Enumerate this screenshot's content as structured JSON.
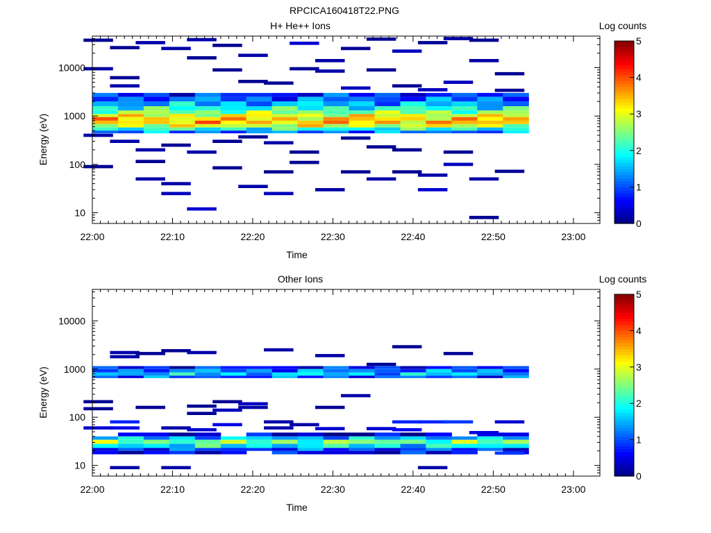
{
  "figure": {
    "title": "RPCICA160418T22.PNG"
  },
  "chart_data": [
    {
      "type": "heatmap",
      "title": "H+ He++ Ions",
      "xlabel": "Time",
      "ylabel": "Energy (eV)",
      "x_ticks": [
        "22:00",
        "22:10",
        "22:20",
        "22:30",
        "22:40",
        "22:50",
        "23:00"
      ],
      "y_ticks": [
        "10",
        "100",
        "1000",
        "10000"
      ],
      "y_scale": "log",
      "ylim": [
        6,
        45000
      ],
      "colorbar": {
        "label": "Log counts",
        "ticks": [
          "0",
          "1",
          "2",
          "3",
          "4",
          "5"
        ],
        "range": [
          0,
          5
        ]
      },
      "data_time_range": [
        "22:00",
        "22:54"
      ],
      "bands": [
        {
          "emin": 2500,
          "emax": 3000,
          "level": 0.8
        },
        {
          "emin": 2000,
          "emax": 2500,
          "level": 1.1
        },
        {
          "emin": 1600,
          "emax": 2000,
          "level": 1.5
        },
        {
          "emin": 1300,
          "emax": 1600,
          "level": 2.0
        },
        {
          "emin": 1100,
          "emax": 1300,
          "level": 2.5
        },
        {
          "emin": 950,
          "emax": 1100,
          "level": 3.0
        },
        {
          "emin": 800,
          "emax": 950,
          "level": 3.3
        },
        {
          "emin": 680,
          "emax": 800,
          "level": 3.4
        },
        {
          "emin": 580,
          "emax": 680,
          "level": 2.9
        },
        {
          "emin": 500,
          "emax": 580,
          "level": 2.0
        },
        {
          "emin": 440,
          "emax": 500,
          "level": 1.2
        }
      ],
      "sparse": [
        {
          "t": 0.5,
          "e": 9500,
          "level": 0.2
        },
        {
          "t": 0.5,
          "e": 400,
          "level": 0.2
        },
        {
          "t": 0.5,
          "e": 90,
          "level": 0.1
        },
        {
          "t": 0.5,
          "e": 37000,
          "level": 0.1
        },
        {
          "t": 3.8,
          "e": 4200,
          "level": 0.2
        },
        {
          "t": 3.8,
          "e": 300,
          "level": 0.2
        },
        {
          "t": 3.8,
          "e": 26000,
          "level": 0.1
        },
        {
          "t": 3.8,
          "e": 6200,
          "level": 0.1
        },
        {
          "t": 7.0,
          "e": 33000,
          "level": 0.2
        },
        {
          "t": 7.0,
          "e": 200,
          "level": 0.2
        },
        {
          "t": 7.0,
          "e": 50,
          "level": 0.2
        },
        {
          "t": 7.0,
          "e": 115,
          "level": 0.1
        },
        {
          "t": 10.2,
          "e": 25000,
          "level": 0.2
        },
        {
          "t": 10.2,
          "e": 250,
          "level": 0.1
        },
        {
          "t": 10.2,
          "e": 25,
          "level": 0.3
        },
        {
          "t": 10.2,
          "e": 40,
          "level": 0.2
        },
        {
          "t": 13.4,
          "e": 12,
          "level": 0.4
        },
        {
          "t": 13.4,
          "e": 38000,
          "level": 0.2
        },
        {
          "t": 13.4,
          "e": 180,
          "level": 0.2
        },
        {
          "t": 13.4,
          "e": 16000,
          "level": 0.1
        },
        {
          "t": 16.6,
          "e": 29000,
          "level": 0.1
        },
        {
          "t": 16.6,
          "e": 9000,
          "level": 0.1
        },
        {
          "t": 16.6,
          "e": 85,
          "level": 0.1
        },
        {
          "t": 16.6,
          "e": 300,
          "level": 0.1
        },
        {
          "t": 19.8,
          "e": 18000,
          "level": 0.2
        },
        {
          "t": 19.8,
          "e": 35,
          "level": 0.2
        },
        {
          "t": 19.8,
          "e": 370,
          "level": 0.1
        },
        {
          "t": 19.8,
          "e": 5200,
          "level": 0.1
        },
        {
          "t": 23.0,
          "e": 25,
          "level": 0.3
        },
        {
          "t": 23.0,
          "e": 280,
          "level": 0.2
        },
        {
          "t": 23.0,
          "e": 4800,
          "level": 0.1
        },
        {
          "t": 23.0,
          "e": 70,
          "level": 0.1
        },
        {
          "t": 26.2,
          "e": 32000,
          "level": 0.4
        },
        {
          "t": 26.2,
          "e": 110,
          "level": 0.1
        },
        {
          "t": 26.2,
          "e": 180,
          "level": 0.1
        },
        {
          "t": 26.2,
          "e": 9500,
          "level": 0.1
        },
        {
          "t": 29.4,
          "e": 14000,
          "level": 0.2
        },
        {
          "t": 29.4,
          "e": 30,
          "level": 0.2
        },
        {
          "t": 29.4,
          "e": 8500,
          "level": 0.2
        },
        {
          "t": 32.6,
          "e": 3800,
          "level": 0.3
        },
        {
          "t": 32.6,
          "e": 350,
          "level": 0.1
        },
        {
          "t": 32.6,
          "e": 70,
          "level": 0.1
        },
        {
          "t": 32.6,
          "e": 25000,
          "level": 0.1
        },
        {
          "t": 35.8,
          "e": 39000,
          "level": 0.1
        },
        {
          "t": 35.8,
          "e": 50,
          "level": 0.2
        },
        {
          "t": 35.8,
          "e": 230,
          "level": 0.1
        },
        {
          "t": 35.8,
          "e": 9000,
          "level": 0.1
        },
        {
          "t": 39.0,
          "e": 22000,
          "level": 0.3
        },
        {
          "t": 39.0,
          "e": 200,
          "level": 0.1
        },
        {
          "t": 39.0,
          "e": 70,
          "level": 0.1
        },
        {
          "t": 39.0,
          "e": 4200,
          "level": 0.1
        },
        {
          "t": 42.2,
          "e": 33000,
          "level": 0.1
        },
        {
          "t": 42.2,
          "e": 30,
          "level": 0.4
        },
        {
          "t": 42.2,
          "e": 60,
          "level": 0.2
        },
        {
          "t": 42.2,
          "e": 3500,
          "level": 0.3
        },
        {
          "t": 45.4,
          "e": 40000,
          "level": 0.2
        },
        {
          "t": 45.4,
          "e": 100,
          "level": 0.3
        },
        {
          "t": 45.4,
          "e": 5000,
          "level": 0.3
        },
        {
          "t": 45.4,
          "e": 180,
          "level": 0.1
        },
        {
          "t": 48.6,
          "e": 8,
          "level": 0.1
        },
        {
          "t": 48.6,
          "e": 14000,
          "level": 0.2
        },
        {
          "t": 48.6,
          "e": 50,
          "level": 0.2
        },
        {
          "t": 48.6,
          "e": 37000,
          "level": 0.1
        },
        {
          "t": 51.8,
          "e": 7500,
          "level": 0.1
        },
        {
          "t": 51.8,
          "e": 3400,
          "level": 0.1
        },
        {
          "t": 51.8,
          "e": 72,
          "level": 0.1
        }
      ]
    },
    {
      "type": "heatmap",
      "title": "Other Ions",
      "xlabel": "Time",
      "ylabel": "Energy (eV)",
      "x_ticks": [
        "22:00",
        "22:10",
        "22:20",
        "22:30",
        "22:40",
        "22:50",
        "23:00"
      ],
      "y_ticks": [
        "10",
        "100",
        "1000",
        "10000"
      ],
      "y_scale": "log",
      "ylim": [
        6,
        45000
      ],
      "colorbar": {
        "label": "Log counts",
        "ticks": [
          "0",
          "1",
          "2",
          "3",
          "4",
          "5"
        ],
        "range": [
          0,
          5
        ]
      },
      "data_time_range": [
        "22:00",
        "22:54"
      ],
      "bands": [
        {
          "emin": 1000,
          "emax": 1150,
          "level": 0.7
        },
        {
          "emin": 850,
          "emax": 1000,
          "level": 1.2
        },
        {
          "emin": 730,
          "emax": 850,
          "level": 1.6
        },
        {
          "emin": 650,
          "emax": 730,
          "level": 1.0
        },
        {
          "emin": 40,
          "emax": 48,
          "level": 0.3
        },
        {
          "emin": 34,
          "emax": 40,
          "level": 1.5
        },
        {
          "emin": 28,
          "emax": 34,
          "level": 2.4
        },
        {
          "emin": 23,
          "emax": 28,
          "level": 1.8
        },
        {
          "emin": 20,
          "emax": 23,
          "level": 0.9
        },
        {
          "emin": 17,
          "emax": 20,
          "level": 0.5
        }
      ],
      "sparse": [
        {
          "t": 0.5,
          "e": 210,
          "level": 0.1
        },
        {
          "t": 0.5,
          "e": 60,
          "level": 0.4
        },
        {
          "t": 0.5,
          "e": 150,
          "level": 0.1
        },
        {
          "t": 3.8,
          "e": 2200,
          "level": 0.2
        },
        {
          "t": 3.8,
          "e": 1800,
          "level": 0.2
        },
        {
          "t": 3.8,
          "e": 80,
          "level": 0.8
        },
        {
          "t": 3.8,
          "e": 60,
          "level": 0.5
        },
        {
          "t": 3.8,
          "e": 9,
          "level": 0.2
        },
        {
          "t": 7.0,
          "e": 2100,
          "level": 0.1
        },
        {
          "t": 7.0,
          "e": 160,
          "level": 0.1
        },
        {
          "t": 10.2,
          "e": 2400,
          "level": 0.1
        },
        {
          "t": 10.2,
          "e": 60,
          "level": 0.2
        },
        {
          "t": 10.2,
          "e": 9,
          "level": 0.2
        },
        {
          "t": 13.4,
          "e": 2200,
          "level": 0.2
        },
        {
          "t": 13.4,
          "e": 170,
          "level": 0.1
        },
        {
          "t": 13.4,
          "e": 120,
          "level": 0.1
        },
        {
          "t": 13.4,
          "e": 55,
          "level": 0.4
        },
        {
          "t": 16.6,
          "e": 210,
          "level": 0.1
        },
        {
          "t": 16.6,
          "e": 140,
          "level": 0.3
        },
        {
          "t": 16.6,
          "e": 70,
          "level": 0.5
        },
        {
          "t": 19.8,
          "e": 190,
          "level": 0.3
        },
        {
          "t": 19.8,
          "e": 160,
          "level": 0.2
        },
        {
          "t": 23.0,
          "e": 2500,
          "level": 0.2
        },
        {
          "t": 23.0,
          "e": 80,
          "level": 0.2
        },
        {
          "t": 23.0,
          "e": 60,
          "level": 0.2
        },
        {
          "t": 26.2,
          "e": 70,
          "level": 0.2
        },
        {
          "t": 29.4,
          "e": 1900,
          "level": 0.2
        },
        {
          "t": 29.4,
          "e": 160,
          "level": 0.1
        },
        {
          "t": 29.4,
          "e": 58,
          "level": 0.4
        },
        {
          "t": 32.6,
          "e": 280,
          "level": 0.2
        },
        {
          "t": 35.8,
          "e": 1250,
          "level": 0.1
        },
        {
          "t": 35.8,
          "e": 58,
          "level": 0.4
        },
        {
          "t": 39.0,
          "e": 2900,
          "level": 0.1
        },
        {
          "t": 39.0,
          "e": 80,
          "level": 0.8
        },
        {
          "t": 39.0,
          "e": 55,
          "level": 0.6
        },
        {
          "t": 42.2,
          "e": 80,
          "level": 0.8
        },
        {
          "t": 42.2,
          "e": 9,
          "level": 0.2
        },
        {
          "t": 45.4,
          "e": 2100,
          "level": 0.1
        },
        {
          "t": 45.4,
          "e": 80,
          "level": 0.9
        },
        {
          "t": 48.6,
          "e": 48,
          "level": 0.5
        },
        {
          "t": 51.8,
          "e": 80,
          "level": 0.4
        },
        {
          "t": 51.8,
          "e": 18,
          "level": 0.9
        }
      ]
    }
  ]
}
